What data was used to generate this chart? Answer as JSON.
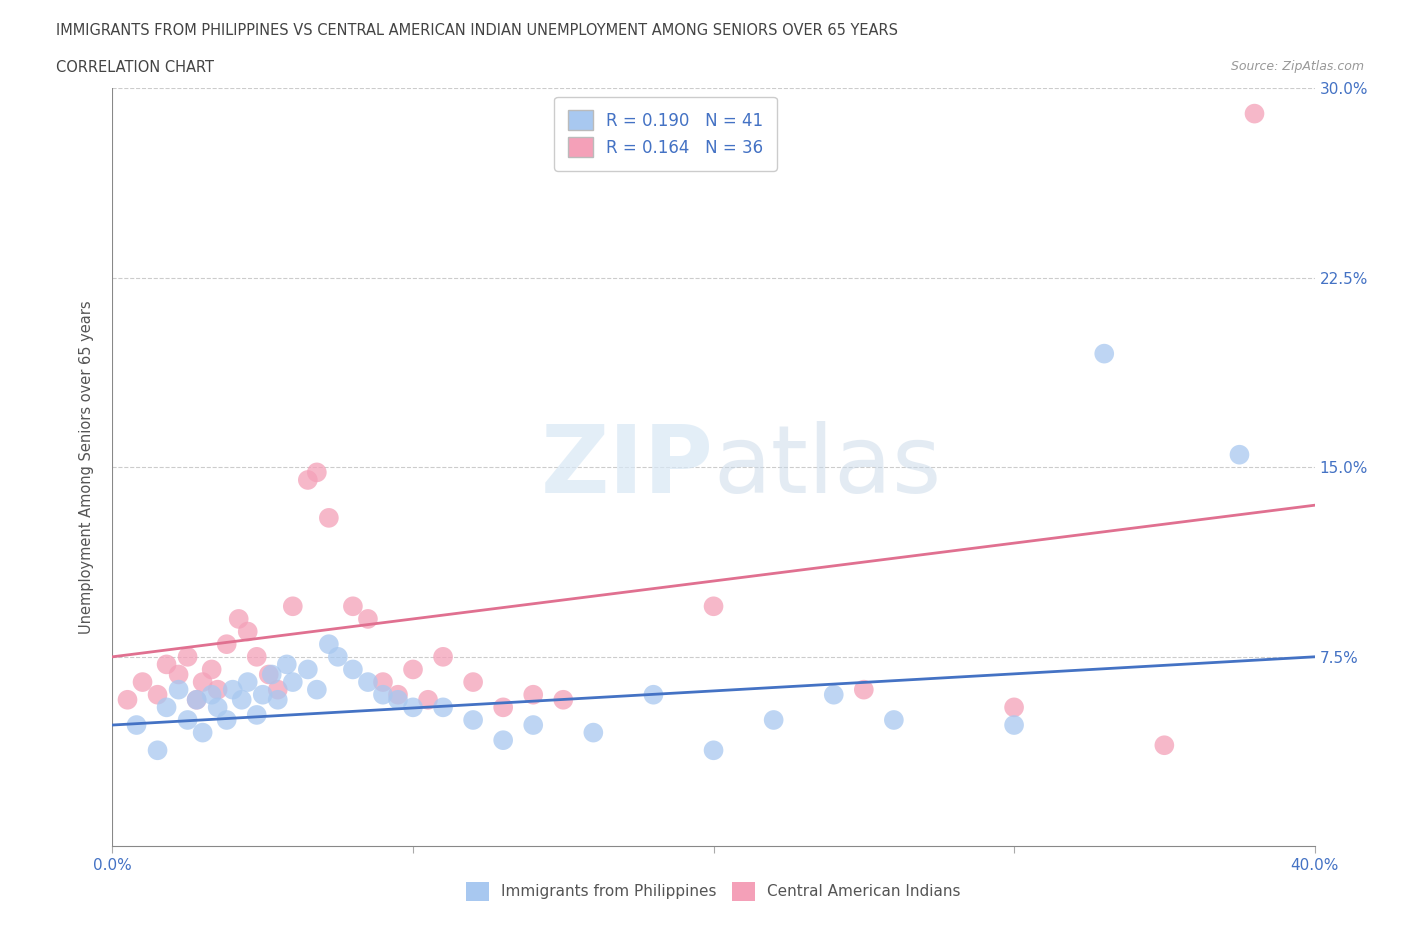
{
  "title_line1": "IMMIGRANTS FROM PHILIPPINES VS CENTRAL AMERICAN INDIAN UNEMPLOYMENT AMONG SENIORS OVER 65 YEARS",
  "title_line2": "CORRELATION CHART",
  "source_text": "Source: ZipAtlas.com",
  "ylabel": "Unemployment Among Seniors over 65 years",
  "xlim": [
    0.0,
    0.4
  ],
  "ylim": [
    0.0,
    0.3
  ],
  "xticks": [
    0.0,
    0.1,
    0.2,
    0.3,
    0.4
  ],
  "xticklabels": [
    "0.0%",
    "",
    "",
    "",
    "40.0%"
  ],
  "yticks": [
    0.0,
    0.075,
    0.15,
    0.225,
    0.3
  ],
  "yticklabels": [
    "",
    "7.5%",
    "15.0%",
    "22.5%",
    "30.0%"
  ],
  "blue_color": "#A8C8F0",
  "pink_color": "#F4A0B8",
  "blue_line_color": "#4472C4",
  "pink_line_color": "#E07090",
  "legend_label_blue": "Immigrants from Philippines",
  "legend_label_pink": "Central American Indians",
  "R_blue": 0.19,
  "N_blue": 41,
  "R_pink": 0.164,
  "N_pink": 36,
  "blue_x": [
    0.008,
    0.015,
    0.018,
    0.022,
    0.025,
    0.028,
    0.03,
    0.033,
    0.035,
    0.038,
    0.04,
    0.043,
    0.045,
    0.048,
    0.05,
    0.053,
    0.055,
    0.058,
    0.06,
    0.065,
    0.068,
    0.072,
    0.075,
    0.08,
    0.085,
    0.09,
    0.095,
    0.1,
    0.11,
    0.12,
    0.13,
    0.14,
    0.16,
    0.18,
    0.2,
    0.22,
    0.24,
    0.26,
    0.3,
    0.33,
    0.375
  ],
  "blue_y": [
    0.048,
    0.038,
    0.055,
    0.062,
    0.05,
    0.058,
    0.045,
    0.06,
    0.055,
    0.05,
    0.062,
    0.058,
    0.065,
    0.052,
    0.06,
    0.068,
    0.058,
    0.072,
    0.065,
    0.07,
    0.062,
    0.08,
    0.075,
    0.07,
    0.065,
    0.06,
    0.058,
    0.055,
    0.055,
    0.05,
    0.042,
    0.048,
    0.045,
    0.06,
    0.038,
    0.05,
    0.06,
    0.05,
    0.048,
    0.195,
    0.155
  ],
  "pink_x": [
    0.005,
    0.01,
    0.015,
    0.018,
    0.022,
    0.025,
    0.028,
    0.03,
    0.033,
    0.035,
    0.038,
    0.042,
    0.045,
    0.048,
    0.052,
    0.055,
    0.06,
    0.065,
    0.068,
    0.072,
    0.08,
    0.085,
    0.09,
    0.095,
    0.1,
    0.105,
    0.11,
    0.12,
    0.13,
    0.14,
    0.15,
    0.2,
    0.25,
    0.3,
    0.35,
    0.38
  ],
  "pink_y": [
    0.058,
    0.065,
    0.06,
    0.072,
    0.068,
    0.075,
    0.058,
    0.065,
    0.07,
    0.062,
    0.08,
    0.09,
    0.085,
    0.075,
    0.068,
    0.062,
    0.095,
    0.145,
    0.148,
    0.13,
    0.095,
    0.09,
    0.065,
    0.06,
    0.07,
    0.058,
    0.075,
    0.065,
    0.055,
    0.06,
    0.058,
    0.095,
    0.062,
    0.055,
    0.04,
    0.29
  ]
}
